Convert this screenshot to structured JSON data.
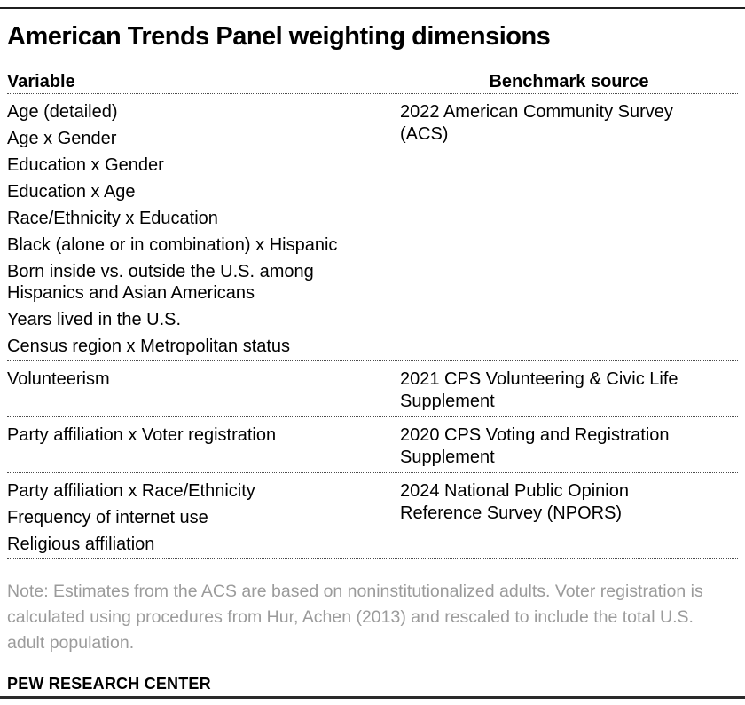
{
  "title": "American Trends Panel weighting dimensions",
  "table": {
    "header": {
      "variable": "Variable",
      "benchmark": "Benchmark source"
    },
    "sections": [
      {
        "variables": [
          "Age (detailed)",
          "Age x Gender",
          "Education x Gender",
          "Education x Age",
          "Race/Ethnicity x Education",
          "Black (alone or in combination) x Hispanic",
          "Born inside vs. outside the U.S. among\nHispanics and Asian Americans",
          "Years lived in the U.S.",
          "Census region x Metropolitan status"
        ],
        "benchmark": "2022 American Community Survey\n(ACS)"
      },
      {
        "variables": [
          "Volunteerism"
        ],
        "benchmark": "2021 CPS Volunteering & Civic Life\nSupplement"
      },
      {
        "variables": [
          "Party affiliation x Voter registration"
        ],
        "benchmark": "2020 CPS Voting and Registration\nSupplement"
      },
      {
        "variables": [
          "Party affiliation x Race/Ethnicity",
          "Frequency of internet use",
          "Religious affiliation"
        ],
        "benchmark": "2024 National Public Opinion\nReference Survey (NPORS)"
      }
    ]
  },
  "note": "Note: Estimates from the ACS are based on noninstitutionalized adults. Voter registration is\ncalculated using procedures from Hur, Achen (2013) and rescaled to include the total U.S.\nadult population.",
  "footer": "PEW RESEARCH CENTER",
  "colors": {
    "background": "#ffffff",
    "text": "#000000",
    "note_text": "#9b9b9b",
    "divider_dotted": "#4c4c4c",
    "rule": "#1f1f1f"
  }
}
